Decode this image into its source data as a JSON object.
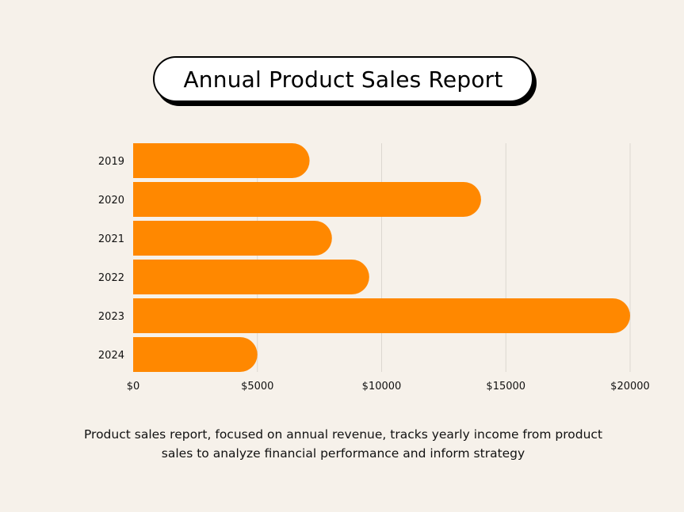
{
  "title": "Annual Product Sales Report",
  "caption": "Product sales report, focused on annual revenue, tracks yearly income from product sales to analyze financial performance and inform strategy",
  "colors": {
    "bar": "#ff8800",
    "grid": "#dcd7d0",
    "background": "#f6f1ea",
    "text": "#111111"
  },
  "chart_data": {
    "type": "bar",
    "orientation": "horizontal",
    "categories": [
      "2019",
      "2020",
      "2021",
      "2022",
      "2023",
      "2024"
    ],
    "values": [
      7100,
      14000,
      8000,
      9500,
      20000,
      5000
    ],
    "title": "Annual Product Sales Report",
    "xlabel": "",
    "ylabel": "",
    "xlim": [
      0,
      20000
    ],
    "xticks": [
      0,
      5000,
      10000,
      15000,
      20000
    ],
    "xtick_labels": [
      "$0",
      "$5000",
      "$10000",
      "$15000",
      "$20000"
    ],
    "grid": "vertical",
    "legend": "none"
  }
}
